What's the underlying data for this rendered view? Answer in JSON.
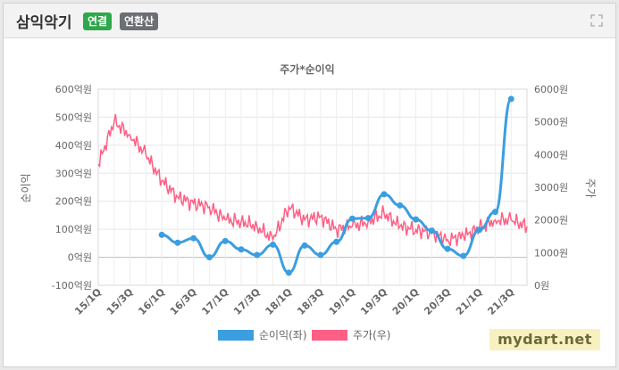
{
  "header": {
    "title": "삼익악기",
    "badge_consolidated": "연결",
    "badge_annualized": "연환산"
  },
  "icons": {
    "expand": "expand-icon"
  },
  "watermark": "mydart.net",
  "colors": {
    "net_income": "#3b9ee0",
    "stock_price": "#ff5f85",
    "badge_green": "#2ea84a",
    "badge_gray": "#6c6f73"
  },
  "chart_data": {
    "type": "line",
    "title": "주가*순이익",
    "ylabel": "순이익",
    "y2label": "주가",
    "grid": true,
    "legend_position": "bottom",
    "x_ticks": [
      "15/1Q",
      "15/3Q",
      "16/1Q",
      "16/3Q",
      "17/1Q",
      "17/3Q",
      "18/1Q",
      "18/3Q",
      "19/1Q",
      "19/3Q",
      "20/1Q",
      "20/3Q",
      "21/1Q",
      "21/3Q"
    ],
    "ylim": [
      -100,
      600
    ],
    "y_ticks": [
      "-100억원",
      "0억원",
      "100억원",
      "200억원",
      "300억원",
      "400억원",
      "500억원",
      "600억원"
    ],
    "y2lim": [
      0,
      6000
    ],
    "y2_ticks": [
      "0원",
      "1000원",
      "2000원",
      "3000원",
      "4000원",
      "5000원",
      "6000원"
    ],
    "series": [
      {
        "name": "순이익(좌)",
        "axis": "left",
        "x": [
          "16/1Q",
          "16/2Q",
          "16/3Q",
          "16/4Q",
          "17/1Q",
          "17/2Q",
          "17/3Q",
          "17/4Q",
          "18/1Q",
          "18/2Q",
          "18/3Q",
          "18/4Q",
          "19/1Q",
          "19/2Q",
          "19/3Q",
          "19/4Q",
          "20/1Q",
          "20/2Q",
          "20/3Q",
          "20/4Q",
          "21/1Q",
          "21/2Q",
          "21/3Q"
        ],
        "values": [
          80,
          52,
          68,
          0,
          58,
          28,
          8,
          45,
          -55,
          42,
          8,
          55,
          138,
          140,
          225,
          185,
          135,
          95,
          30,
          5,
          98,
          162,
          565
        ]
      },
      {
        "name": "주가(우)",
        "axis": "right",
        "x": [
          "15/1Q",
          "15/2Q",
          "15/3Q",
          "15/4Q",
          "16/1Q",
          "16/2Q",
          "16/3Q",
          "16/4Q",
          "17/1Q",
          "17/2Q",
          "17/3Q",
          "17/4Q",
          "18/1Q",
          "18/2Q",
          "18/3Q",
          "18/4Q",
          "19/1Q",
          "19/2Q",
          "19/3Q",
          "19/4Q",
          "20/1Q",
          "20/2Q",
          "20/3Q",
          "20/4Q",
          "21/1Q",
          "21/2Q",
          "21/3Q",
          "21/4Q"
        ],
        "values": [
          3700,
          5000,
          4600,
          4000,
          3200,
          2700,
          2500,
          2400,
          2000,
          1950,
          1800,
          1400,
          2400,
          2000,
          2100,
          1700,
          1800,
          1950,
          2200,
          1800,
          1700,
          1600,
          1400,
          1500,
          1750,
          2000,
          2000,
          1800
        ]
      }
    ]
  }
}
